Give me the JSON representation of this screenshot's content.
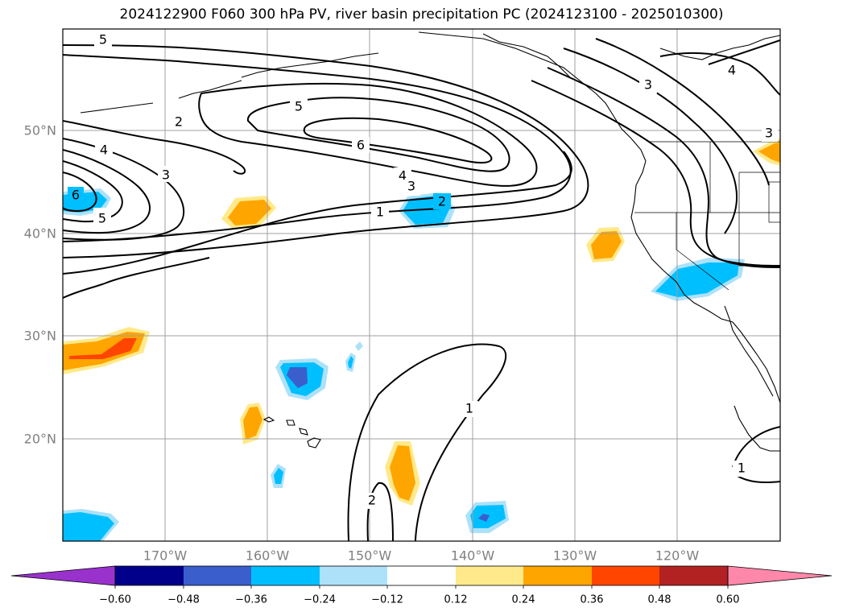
{
  "title": "2024122900 F060 300 hPa PV, river basin precipitation PC (2024123100 - 2025010300)",
  "lat_labels": [
    "50°N",
    "40°N",
    "30°N",
    "20°N"
  ],
  "lon_labels": [
    "170°W",
    "160°W",
    "150°W",
    "140°W",
    "130°W",
    "120°W"
  ],
  "colorbar": {
    "colors": [
      "#9932CC",
      "#00008B",
      "#3A5FCD",
      "#00BFFF",
      "#ADE1FA",
      "#FFFFFF",
      "#FFE98A",
      "#FFA500",
      "#FF4500",
      "#B22222",
      "#FF88AA"
    ],
    "ticks": [
      "−0.60",
      "−0.48",
      "−0.36",
      "−0.24",
      "−0.12",
      "0.12",
      "0.24",
      "0.36",
      "0.48",
      "0.60"
    ]
  },
  "contour_labels": [
    "5",
    "5",
    "2",
    "4",
    "3",
    "6",
    "5",
    "6",
    "4",
    "3",
    "2",
    "1",
    "3",
    "4",
    "3",
    "1",
    "2",
    "1"
  ]
}
